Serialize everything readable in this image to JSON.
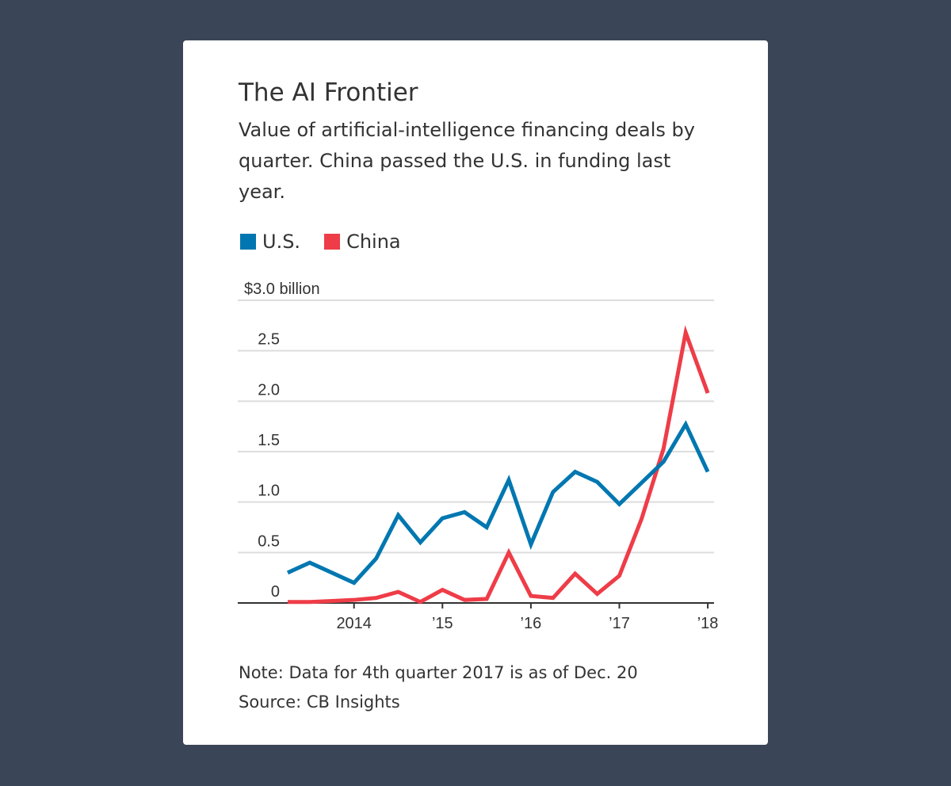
{
  "title": "The AI Frontier",
  "subtitle": "Value of artificial-intelligence financing deals by quarter. China passed the U.S. in funding last year.",
  "note": "Note: Data for 4th quarter 2017 is as of Dec. 20",
  "source": "Source: CB Insights",
  "chart_data": {
    "type": "line",
    "ylabel": "$3.0 billion",
    "ylim": [
      0,
      3.0
    ],
    "yticks": [
      0,
      0.5,
      1.0,
      1.5,
      2.0,
      2.5,
      3.0
    ],
    "ytick_labels": [
      "0",
      "0.5",
      "1.0",
      "1.5",
      "2.0",
      "2.5",
      "$3.0 billion"
    ],
    "xtick_labels": [
      "2014",
      "’15",
      "’16",
      "’17",
      "’18"
    ],
    "x": [
      "2013 Q1",
      "2013 Q2",
      "2013 Q3",
      "2013 Q4",
      "2014 Q1",
      "2014 Q2",
      "2014 Q3",
      "2014 Q4",
      "2015 Q1",
      "2015 Q2",
      "2015 Q3",
      "2015 Q4",
      "2016 Q1",
      "2016 Q2",
      "2016 Q3",
      "2016 Q4",
      "2017 Q1",
      "2017 Q2",
      "2017 Q3",
      "2017 Q4"
    ],
    "grid": true,
    "legend_placement": "top-left",
    "series": [
      {
        "name": "U.S.",
        "color": "#0077b0",
        "values": [
          0.3,
          0.4,
          0.3,
          0.2,
          0.44,
          0.87,
          0.6,
          0.84,
          0.9,
          0.75,
          1.22,
          0.58,
          1.1,
          1.3,
          1.2,
          0.98,
          1.19,
          1.4,
          1.77,
          1.3
        ]
      },
      {
        "name": "China",
        "color": "#ee3d48",
        "values": [
          0.01,
          0.01,
          0.02,
          0.03,
          0.05,
          0.11,
          0.01,
          0.13,
          0.03,
          0.04,
          0.5,
          0.07,
          0.05,
          0.29,
          0.09,
          0.27,
          0.83,
          1.53,
          2.68,
          2.08
        ]
      }
    ]
  }
}
